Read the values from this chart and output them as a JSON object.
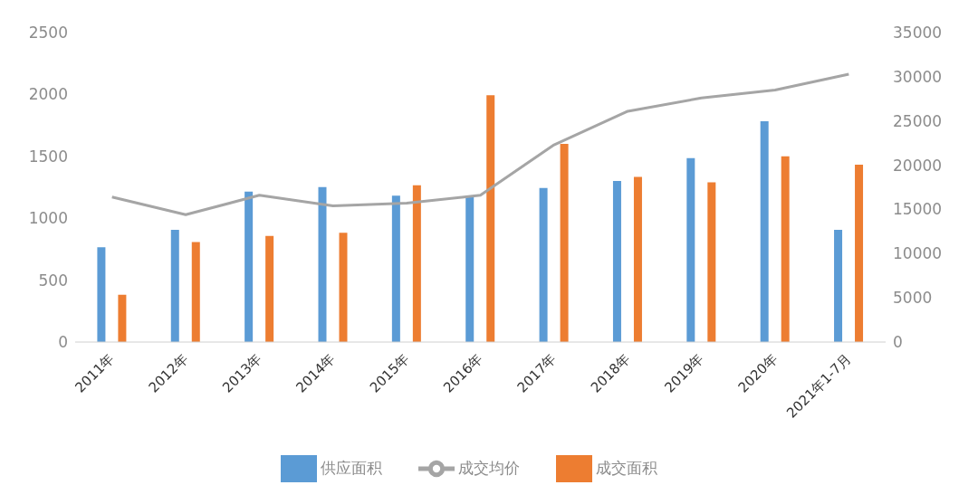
{
  "chart_data": {
    "type": "bar",
    "categories": [
      "2011年",
      "2012年",
      "2013年",
      "2014年",
      "2015年",
      "2016年",
      "2017年",
      "2018年",
      "2019年",
      "2020年",
      "2021年1-7月"
    ],
    "series": [
      {
        "name": "供应面积",
        "color": "#5b9bd5",
        "values": [
          766,
          907,
          1216,
          1251,
          1183,
          1183,
          1244,
          1302,
          1485,
          1784,
          907
        ]
      },
      {
        "name": "成交面积",
        "color": "#ed7d31",
        "values": [
          382,
          807,
          857,
          882,
          1266,
          1993,
          1601,
          1334,
          1291,
          1500,
          1432
        ]
      },
      {
        "name": "成交均价",
        "type": "line",
        "axis": "y2",
        "color": "#a5a5a5",
        "values": [
          16400,
          14400,
          16600,
          15400,
          15700,
          16600,
          22300,
          26100,
          27600,
          28500,
          30300
        ]
      }
    ],
    "ylim": [
      0,
      2500
    ],
    "yticks": [
      0,
      500,
      1000,
      1500,
      2000,
      2500
    ],
    "y2lim": [
      0,
      35000
    ],
    "y2ticks": [
      0,
      5000,
      10000,
      15000,
      20000,
      25000,
      30000,
      35000
    ],
    "grid": false,
    "legend": "bottom",
    "marker": "none"
  }
}
